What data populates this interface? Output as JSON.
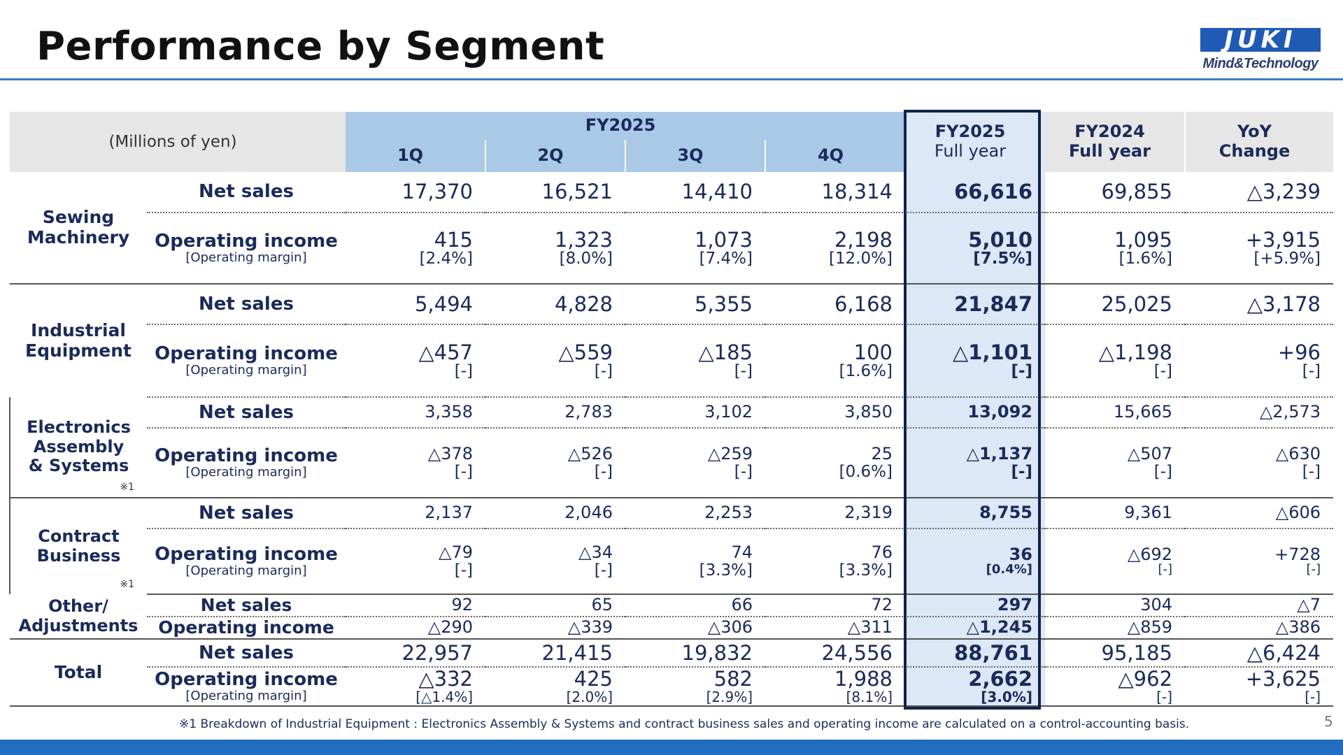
{
  "header": {
    "title": "Performance by Segment",
    "logo_word": "JUKI",
    "logo_tagline": "Mind&Technology"
  },
  "table": {
    "corner": "(Millions of yen)",
    "group_header": "FY2025",
    "quarters": [
      "1Q",
      "2Q",
      "3Q",
      "4Q"
    ],
    "fullyear_header": [
      "FY2025",
      "Full year"
    ],
    "prev_header": [
      "FY2024",
      "Full year"
    ],
    "yoy_header": [
      "YoY",
      "Change"
    ],
    "labels": {
      "net_sales": "Net sales",
      "operating_income": "Operating income",
      "operating_margin": "[Operating margin]"
    },
    "sewing": {
      "name": [
        "Sewing",
        "Machinery"
      ],
      "sales": [
        "17,370",
        "16,521",
        "14,410",
        "18,314",
        "66,616",
        "69,855",
        "△3,239"
      ],
      "income": [
        "415",
        "1,323",
        "1,073",
        "2,198",
        "5,010",
        "1,095",
        "+3,915"
      ],
      "margin": [
        "[2.4%]",
        "[8.0%]",
        "[7.4%]",
        "[12.0%]",
        "[7.5%]",
        "[1.6%]",
        "[+5.9%]"
      ]
    },
    "industrial": {
      "name": [
        "Industrial",
        "Equipment"
      ],
      "sales": [
        "5,494",
        "4,828",
        "5,355",
        "6,168",
        "21,847",
        "25,025",
        "△3,178"
      ],
      "income": [
        "△457",
        "△559",
        "△185",
        "100",
        "△1,101",
        "△1,198",
        "+96"
      ],
      "margin": [
        "[-]",
        "[-]",
        "[-]",
        "[1.6%]",
        "[-]",
        "[-]",
        "[-]"
      ]
    },
    "electronics": {
      "name": [
        "Electronics",
        "Assembly",
        "& Systems"
      ],
      "mark": "※1",
      "sales": [
        "3,358",
        "2,783",
        "3,102",
        "3,850",
        "13,092",
        "15,665",
        "△2,573"
      ],
      "income": [
        "△378",
        "△526",
        "△259",
        "25",
        "△1,137",
        "△507",
        "△630"
      ],
      "margin": [
        "[-]",
        "[-]",
        "[-]",
        "[0.6%]",
        "[-]",
        "[-]",
        "[-]"
      ]
    },
    "contract": {
      "name": [
        "Contract",
        "Business"
      ],
      "mark": "※1",
      "sales": [
        "2,137",
        "2,046",
        "2,253",
        "2,319",
        "8,755",
        "9,361",
        "△606"
      ],
      "income": [
        "△79",
        "△34",
        "74",
        "76",
        "36",
        "△692",
        "+728"
      ],
      "margin": [
        "[-]",
        "[-]",
        "[3.3%]",
        "[3.3%]",
        "[0.4%]",
        "[-]",
        "[-]"
      ]
    },
    "other": {
      "name": [
        "Other/",
        "Adjustments"
      ],
      "sales": [
        "92",
        "65",
        "66",
        "72",
        "297",
        "304",
        "△7"
      ],
      "income": [
        "△290",
        "△339",
        "△306",
        "△311",
        "△1,245",
        "△859",
        "△386"
      ]
    },
    "total": {
      "name": "Total",
      "sales": [
        "22,957",
        "21,415",
        "19,832",
        "24,556",
        "88,761",
        "95,185",
        "△6,424"
      ],
      "income": [
        "△332",
        "425",
        "582",
        "1,988",
        "2,662",
        "△962",
        "+3,625"
      ],
      "margin": [
        "[△1.4%]",
        "[2.0%]",
        "[2.9%]",
        "[8.1%]",
        "[3.0%]",
        "[-]",
        "[-]"
      ]
    }
  },
  "footnote": "※1 Breakdown of Industrial Equipment : Electronics Assembly & Systems and contract business  sales and operating income are calculated on a control-accounting basis.",
  "page_number": "5",
  "colors": {
    "header_blue": "#a9c9e7",
    "highlight_blue": "#dce8f5",
    "frame_navy": "#10244f",
    "bar_blue": "#1f6cc1"
  }
}
